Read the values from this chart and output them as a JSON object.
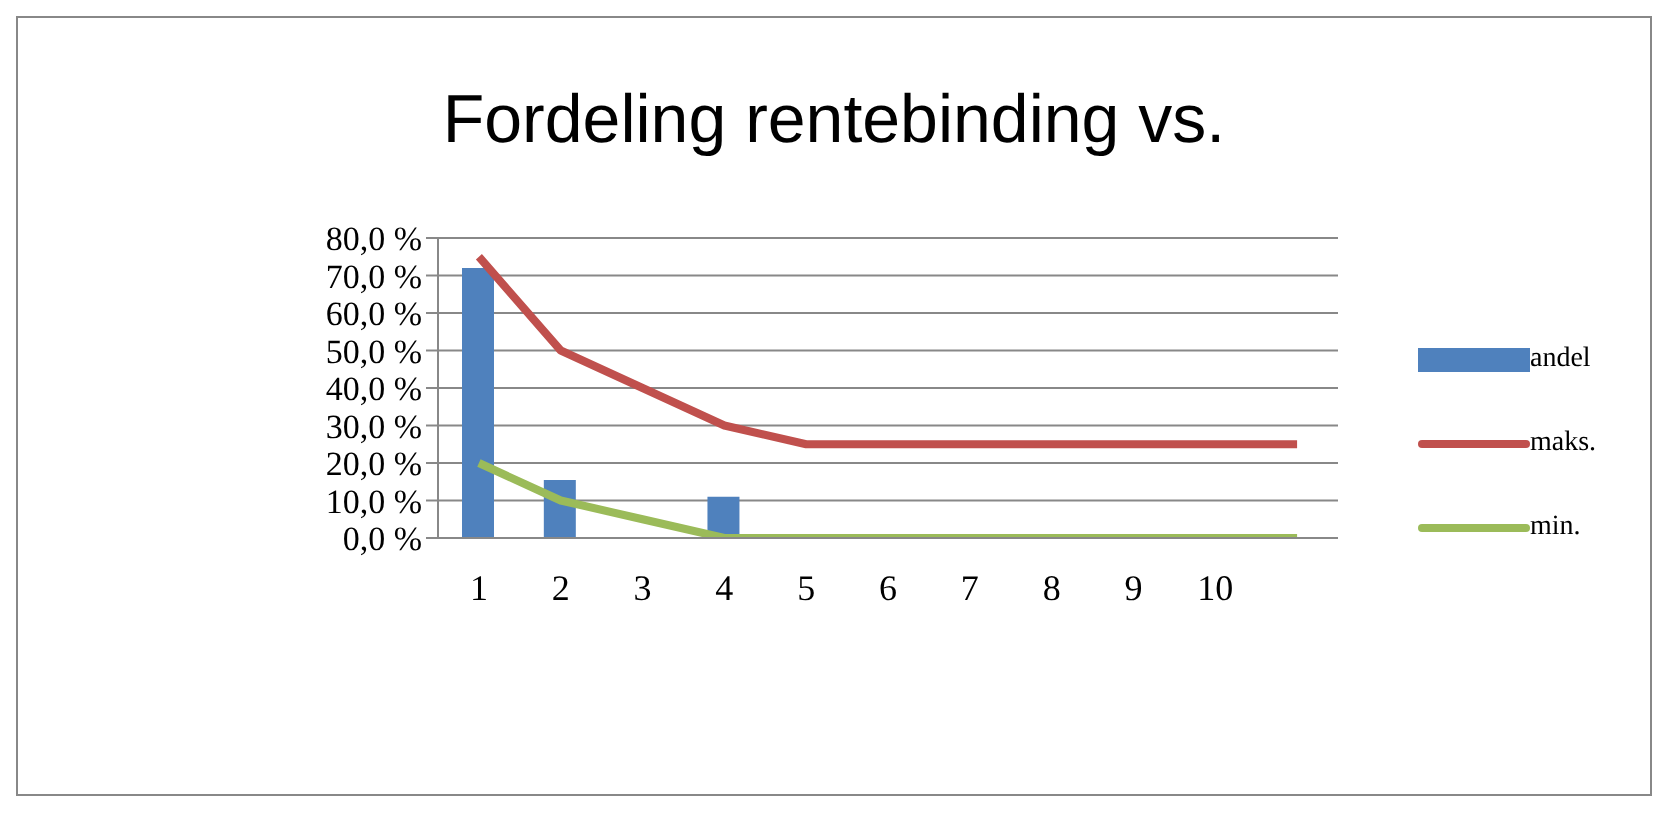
{
  "chart_data": {
    "type": "bar",
    "title": "Fordeling rentebinding vs.",
    "categories": [
      "1",
      "2",
      "3",
      "4",
      "5",
      "6",
      "7",
      "8",
      "9",
      "10",
      null
    ],
    "series": [
      {
        "name": "andel",
        "color": "#4f81bd",
        "values": [
          72,
          15.5,
          null,
          11,
          null,
          null,
          null,
          null,
          null,
          null,
          null
        ]
      },
      {
        "name": "maks.",
        "type": "line",
        "color": "#c0504d",
        "values": [
          75,
          50,
          40,
          30,
          25,
          25,
          25,
          25,
          25,
          25,
          25
        ]
      },
      {
        "name": "min.",
        "type": "line",
        "color": "#9bbb59",
        "values": [
          20,
          10,
          5,
          0,
          0,
          0,
          0,
          0,
          0,
          0,
          0
        ]
      }
    ],
    "ylim": [
      0,
      80
    ],
    "yticks": [
      {
        "value": 0,
        "label": "0,0 %"
      },
      {
        "value": 10,
        "label": "10,0 %"
      },
      {
        "value": 20,
        "label": "20,0 %"
      },
      {
        "value": 30,
        "label": "30,0 %"
      },
      {
        "value": 40,
        "label": "40,0 %"
      },
      {
        "value": 50,
        "label": "50,0 %"
      },
      {
        "value": 60,
        "label": "60,0 %"
      },
      {
        "value": 70,
        "label": "70,0 %"
      },
      {
        "value": 80,
        "label": "80,0 %"
      }
    ],
    "grid": "y",
    "legend": "right",
    "marker": "none"
  }
}
